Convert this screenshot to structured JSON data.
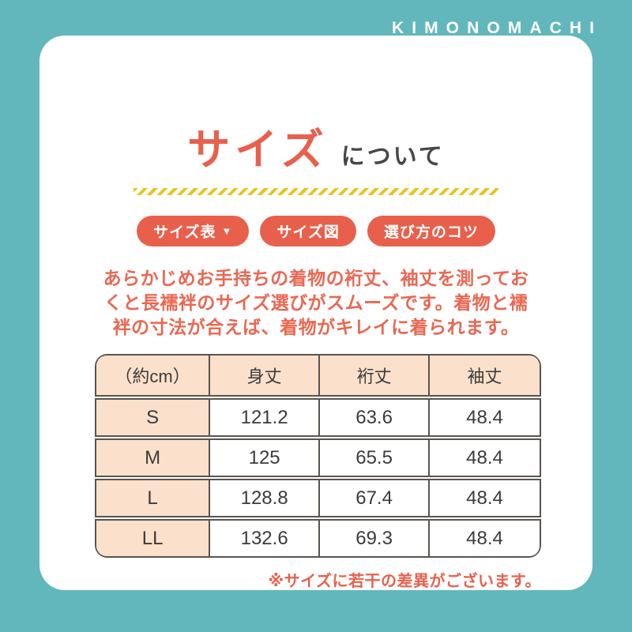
{
  "brand": {
    "logo": "KIMONOMACHI"
  },
  "title": {
    "main": "サイズ",
    "suffix": "について"
  },
  "nav_buttons": [
    {
      "label": "サイズ表",
      "icon": "▼"
    },
    {
      "label": "サイズ図"
    },
    {
      "label": "選び方のコツ"
    }
  ],
  "description": {
    "lines": [
      "あらかじめお手持ちの着物の裄丈、袖丈を測ってお",
      "くと長襦袢のサイズ選びがスムーズです。着物と襦",
      "袢の寸法が合えば、着物がキレイに着られます。"
    ]
  },
  "size_table": {
    "header": [
      "（約cm）",
      "身丈",
      "裄丈",
      "袖丈"
    ],
    "rows": [
      {
        "size": "S",
        "values": [
          "121.2",
          "63.6",
          "48.4"
        ]
      },
      {
        "size": "M",
        "values": [
          "125",
          "65.5",
          "48.4"
        ]
      },
      {
        "size": "L",
        "values": [
          "128.8",
          "67.4",
          "48.4"
        ]
      },
      {
        "size": "LL",
        "values": [
          "132.6",
          "69.3",
          "48.4"
        ]
      }
    ]
  },
  "note": "※サイズに若干の差異がございます。",
  "colors": {
    "background": "#62b7bc",
    "card": "#ffffff",
    "accent_coral": "#e8604c",
    "peach": "#fbe0cb",
    "stripe_yellow": "#e9c41f",
    "table_border": "#59544f",
    "dark_text": "#474747"
  }
}
